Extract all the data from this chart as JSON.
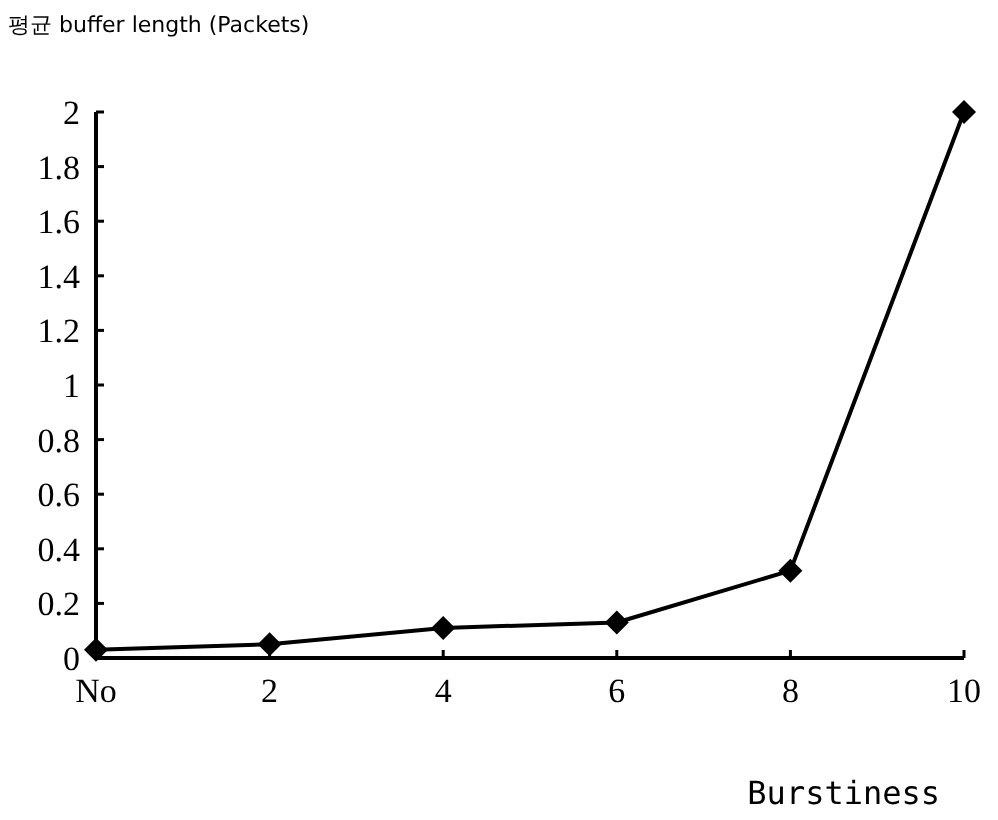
{
  "chart_data": {
    "type": "line",
    "ylabel": "평균 buffer length (Packets)",
    "xlabel": "Burstiness",
    "categories": [
      "No",
      "2",
      "4",
      "6",
      "8",
      "10"
    ],
    "series": [
      {
        "color": "#000000",
        "values": [
          0.03,
          0.05,
          0.11,
          0.13,
          0.32,
          2.0
        ]
      }
    ],
    "ylim": [
      0,
      2
    ],
    "yticks": [
      0,
      0.2,
      0.4,
      0.6,
      0.8,
      1,
      1.2,
      1.4,
      1.6,
      1.8,
      2
    ],
    "marker": "diamond",
    "line_style": "solid",
    "grid": false
  }
}
